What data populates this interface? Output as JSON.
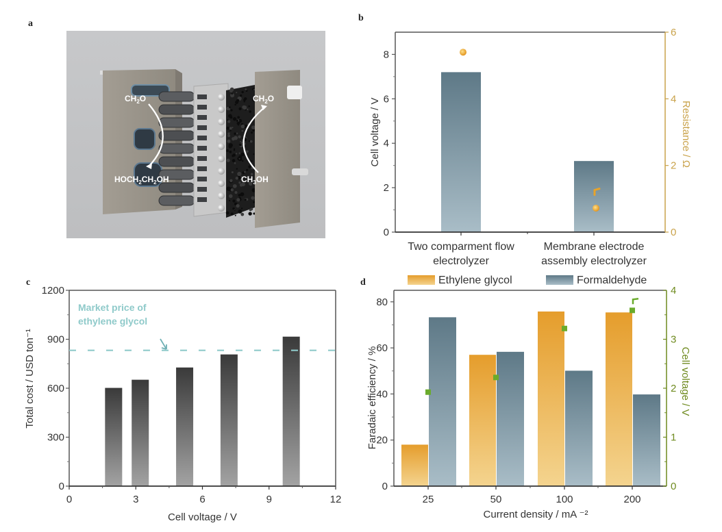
{
  "figure": {
    "panel_labels": {
      "a": "a",
      "b": "b",
      "c": "c",
      "d": "d"
    },
    "panel_a": {
      "description": "Rendered schematic of a membrane electrode assembly electrolyzer",
      "labels": {
        "left_top": "CH2O",
        "left_bottom": "HOCH2CH2OH",
        "right_top": "CH2O",
        "right_bottom": "CH3OH"
      }
    }
  },
  "chart_data": [
    {
      "id": "b",
      "type": "bar",
      "categories": [
        "Two comparment flow electrolyzer",
        "Membrane electrode assembly electrolyzer"
      ],
      "category_lines": [
        [
          "Two comparment flow",
          "electrolyzer"
        ],
        [
          "Membrane electrode",
          "assembly electrolyzer"
        ]
      ],
      "series": [
        {
          "name": "Cell voltage",
          "axis": "left",
          "kind": "bar",
          "values": [
            7.2,
            3.2
          ],
          "color_top": "#5e7987",
          "color_bottom": "#a9bdc7"
        },
        {
          "name": "Resistance",
          "axis": "right",
          "kind": "scatter",
          "values": [
            5.4,
            0.72
          ],
          "extra_points": [
            [
              1,
              1.2
            ]
          ],
          "color": "#e7a32a"
        }
      ],
      "ylabel": "Cell voltage / V",
      "ylim": [
        0,
        9
      ],
      "yticks": [
        0,
        2,
        4,
        6,
        8
      ],
      "y2label": "Resistance / Ω",
      "y2lim": [
        0,
        6
      ],
      "y2ticks": [
        0,
        2,
        4,
        6
      ],
      "y2color": "#c9a24a",
      "title": ""
    },
    {
      "id": "c",
      "type": "bar",
      "x": [
        2,
        3.2,
        5.2,
        7.2,
        10
      ],
      "values": [
        602,
        652,
        727,
        807,
        916
      ],
      "xlabel": "Cell voltage / V",
      "ylabel": "Total cost / USD ton⁻¹",
      "xlim": [
        0,
        12
      ],
      "xticks": [
        0,
        3,
        6,
        9,
        12
      ],
      "ylim": [
        0,
        1200
      ],
      "yticks": [
        0,
        300,
        600,
        900,
        1200
      ],
      "reference_line": {
        "value": 832,
        "label_lines": [
          "Market price of",
          "ethylene glycol"
        ],
        "color": "#8fcaca"
      },
      "bar_color_top": "#3a3a3a",
      "bar_color_bottom": "#a3a3a3",
      "title": ""
    },
    {
      "id": "d",
      "type": "bar",
      "categories": [
        "25",
        "50",
        "100",
        "200"
      ],
      "series": [
        {
          "name": "Ethylene glycol",
          "axis": "left",
          "kind": "bar",
          "values": [
            18,
            57,
            75.8,
            75.4
          ],
          "color_top": "#e59d2c",
          "color_bottom": "#f4d48f"
        },
        {
          "name": "Formaldehyde",
          "axis": "left",
          "kind": "bar",
          "values": [
            73.3,
            58.3,
            50.1,
            39.8
          ],
          "color_top": "#5e7987",
          "color_bottom": "#a9bdc7"
        },
        {
          "name": "Cell voltage",
          "axis": "right",
          "kind": "scatter",
          "values": [
            1.92,
            2.22,
            3.22,
            3.59
          ],
          "extra_points": [
            [
              3,
              3.8
            ]
          ],
          "color": "#6aab2c"
        }
      ],
      "legend": [
        "Ethylene glycol",
        "Formaldehyde"
      ],
      "legend_position": "top",
      "xlabel": "Current density / mA ⁻²",
      "ylabel": "Faradaic efficiency / %",
      "ylim": [
        0,
        85
      ],
      "yticks": [
        0,
        20,
        40,
        60,
        80
      ],
      "y2label": "Cell voltage / V",
      "y2lim": [
        0,
        4
      ],
      "y2ticks": [
        0,
        1,
        2,
        3,
        4
      ],
      "y2color": "#6e8a1e",
      "title": ""
    }
  ]
}
